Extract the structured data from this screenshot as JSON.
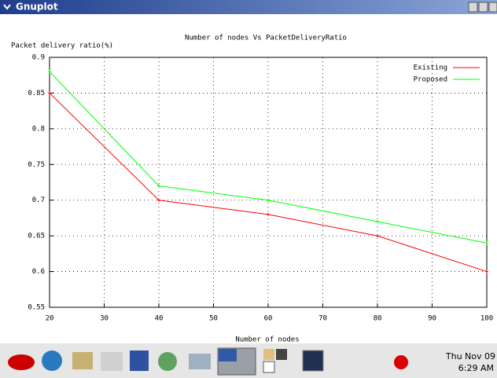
{
  "window": {
    "title": "Gnuplot"
  },
  "chart_data": {
    "type": "line",
    "title": "Number of nodes Vs PacketDeliveryRatio",
    "x_label": "Number of nodes",
    "y_label": "Packet delivery ratio(%)",
    "x": [
      20,
      40,
      60,
      80,
      100
    ],
    "series": [
      {
        "name": "Existing",
        "color": "#ff0000",
        "values": [
          0.85,
          0.7,
          0.68,
          0.65,
          0.6
        ]
      },
      {
        "name": "Proposed",
        "color": "#00ff00",
        "values": [
          0.88,
          0.72,
          0.7,
          0.67,
          0.64
        ]
      }
    ],
    "xlim": [
      20,
      100
    ],
    "xticks": [
      20,
      30,
      40,
      50,
      60,
      70,
      80,
      90,
      100
    ],
    "ylim": [
      0.55,
      0.9
    ],
    "yticks": [
      0.55,
      0.6,
      0.65,
      0.7,
      0.75,
      0.8,
      0.85,
      0.9
    ],
    "grid": true,
    "legend": "top-right"
  },
  "taskbar": {
    "clock_date": "Thu Nov 09",
    "clock_time": "6:29 AM"
  }
}
